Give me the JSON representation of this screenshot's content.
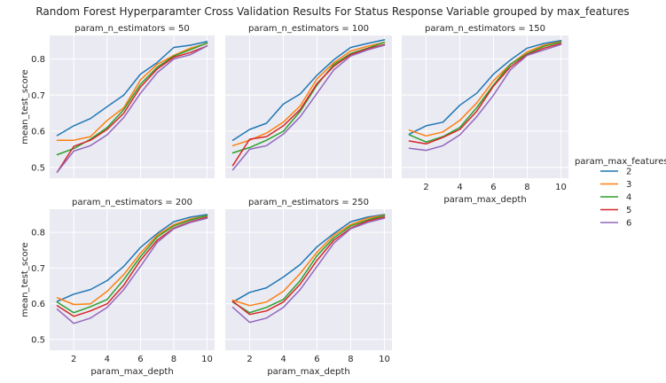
{
  "chart_data": {
    "type": "line",
    "title": "Random Forest Hyperparamter Cross Validation Results For Status Response Variable grouped by max_features",
    "xlabel": "param_max_depth",
    "ylabel": "mean_test_score",
    "x": [
      1,
      2,
      3,
      4,
      5,
      6,
      7,
      8,
      9,
      10
    ],
    "xticks": [
      "2",
      "4",
      "6",
      "8",
      "10"
    ],
    "xlim": [
      0.55,
      10.45
    ],
    "yticks": [
      "0.5",
      "0.6",
      "0.7",
      "0.8"
    ],
    "ylim": [
      0.47,
      0.865
    ],
    "grid": true,
    "legend": {
      "title": "param_max_features",
      "placement": "right",
      "entries": [
        "2",
        "3",
        "4",
        "5",
        "6"
      ]
    },
    "colors": [
      "#1f77b4",
      "#ff7f0e",
      "#2ca02c",
      "#d62728",
      "#9467bd"
    ],
    "panels": [
      {
        "title": "param_n_estimators = 50",
        "series": [
          {
            "name": "2",
            "values": [
              0.588,
              0.615,
              0.635,
              0.668,
              0.7,
              0.758,
              0.79,
              0.832,
              0.838,
              0.848
            ]
          },
          {
            "name": "3",
            "values": [
              0.575,
              0.575,
              0.585,
              0.63,
              0.665,
              0.742,
              0.785,
              0.81,
              0.83,
              0.843
            ]
          },
          {
            "name": "4",
            "values": [
              0.535,
              0.552,
              0.578,
              0.61,
              0.66,
              0.73,
              0.777,
              0.808,
              0.826,
              0.844
            ]
          },
          {
            "name": "5",
            "values": [
              0.487,
              0.558,
              0.575,
              0.605,
              0.65,
              0.722,
              0.772,
              0.805,
              0.818,
              0.836
            ]
          },
          {
            "name": "6",
            "values": [
              0.487,
              0.545,
              0.56,
              0.59,
              0.638,
              0.705,
              0.762,
              0.8,
              0.812,
              0.836
            ]
          }
        ]
      },
      {
        "title": "param_n_estimators = 100",
        "series": [
          {
            "name": "2",
            "values": [
              0.575,
              0.605,
              0.622,
              0.675,
              0.703,
              0.755,
              0.798,
              0.832,
              0.843,
              0.853
            ]
          },
          {
            "name": "3",
            "values": [
              0.56,
              0.575,
              0.595,
              0.625,
              0.67,
              0.745,
              0.79,
              0.822,
              0.835,
              0.846
            ]
          },
          {
            "name": "4",
            "values": [
              0.54,
              0.555,
              0.575,
              0.6,
              0.655,
              0.728,
              0.785,
              0.815,
              0.83,
              0.846
            ]
          },
          {
            "name": "5",
            "values": [
              0.505,
              0.578,
              0.585,
              0.615,
              0.66,
              0.732,
              0.78,
              0.812,
              0.828,
              0.84
            ]
          },
          {
            "name": "6",
            "values": [
              0.493,
              0.55,
              0.56,
              0.592,
              0.64,
              0.705,
              0.77,
              0.808,
              0.825,
              0.838
            ]
          }
        ]
      },
      {
        "title": "param_n_estimators = 150",
        "series": [
          {
            "name": "2",
            "values": [
              0.592,
              0.615,
              0.625,
              0.672,
              0.705,
              0.758,
              0.797,
              0.83,
              0.843,
              0.851
            ]
          },
          {
            "name": "3",
            "values": [
              0.603,
              0.587,
              0.598,
              0.63,
              0.678,
              0.74,
              0.785,
              0.82,
              0.838,
              0.848
            ]
          },
          {
            "name": "4",
            "values": [
              0.59,
              0.57,
              0.585,
              0.61,
              0.665,
              0.728,
              0.785,
              0.815,
              0.835,
              0.847
            ]
          },
          {
            "name": "5",
            "values": [
              0.573,
              0.565,
              0.583,
              0.605,
              0.655,
              0.725,
              0.778,
              0.812,
              0.83,
              0.843
            ]
          },
          {
            "name": "6",
            "values": [
              0.553,
              0.547,
              0.56,
              0.59,
              0.64,
              0.7,
              0.77,
              0.81,
              0.825,
              0.84
            ]
          }
        ]
      },
      {
        "title": "param_n_estimators = 200",
        "series": [
          {
            "name": "2",
            "values": [
              0.607,
              0.627,
              0.64,
              0.665,
              0.705,
              0.758,
              0.797,
              0.83,
              0.843,
              0.85
            ]
          },
          {
            "name": "3",
            "values": [
              0.617,
              0.598,
              0.6,
              0.635,
              0.682,
              0.742,
              0.792,
              0.822,
              0.838,
              0.847
            ]
          },
          {
            "name": "4",
            "values": [
              0.605,
              0.575,
              0.592,
              0.612,
              0.668,
              0.732,
              0.787,
              0.818,
              0.835,
              0.847
            ]
          },
          {
            "name": "5",
            "values": [
              0.595,
              0.565,
              0.58,
              0.6,
              0.652,
              0.722,
              0.778,
              0.812,
              0.83,
              0.843
            ]
          },
          {
            "name": "6",
            "values": [
              0.585,
              0.545,
              0.56,
              0.59,
              0.64,
              0.705,
              0.772,
              0.81,
              0.828,
              0.84
            ]
          }
        ]
      },
      {
        "title": "param_n_estimators = 250",
        "series": [
          {
            "name": "2",
            "values": [
              0.605,
              0.632,
              0.645,
              0.675,
              0.71,
              0.76,
              0.797,
              0.83,
              0.843,
              0.85
            ]
          },
          {
            "name": "3",
            "values": [
              0.61,
              0.595,
              0.605,
              0.635,
              0.685,
              0.745,
              0.792,
              0.822,
              0.84,
              0.848
            ]
          },
          {
            "name": "4",
            "values": [
              0.605,
              0.575,
              0.59,
              0.612,
              0.665,
              0.735,
              0.785,
              0.818,
              0.835,
              0.847
            ]
          },
          {
            "name": "5",
            "values": [
              0.607,
              0.57,
              0.58,
              0.605,
              0.655,
              0.722,
              0.778,
              0.812,
              0.832,
              0.843
            ]
          },
          {
            "name": "6",
            "values": [
              0.59,
              0.548,
              0.56,
              0.59,
              0.64,
              0.705,
              0.77,
              0.81,
              0.828,
              0.84
            ]
          }
        ]
      }
    ]
  }
}
